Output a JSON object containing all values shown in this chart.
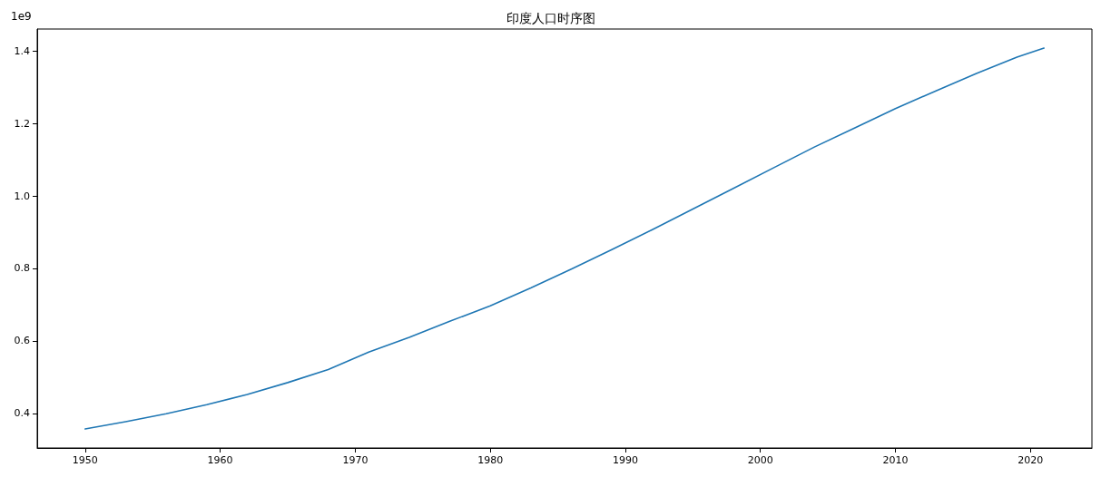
{
  "chart_data": {
    "type": "line",
    "title": "印度人口时序图",
    "annotations": [
      "1e9"
    ],
    "x": [
      1950,
      1953,
      1956,
      1959,
      1962,
      1965,
      1968,
      1971,
      1974,
      1977,
      1980,
      1983,
      1986,
      1989,
      1992,
      1995,
      1998,
      2001,
      2004,
      2007,
      2010,
      2013,
      2016,
      2019,
      2021
    ],
    "series": [
      {
        "color": "#1f77b4",
        "values": [
          0.357,
          0.377,
          0.399,
          0.424,
          0.452,
          0.485,
          0.521,
          0.569,
          0.61,
          0.654,
          0.697,
          0.746,
          0.798,
          0.852,
          0.907,
          0.964,
          1.021,
          1.078,
          1.135,
          1.188,
          1.241,
          1.29,
          1.338,
          1.383,
          1.408
        ]
      }
    ],
    "xlim": [
      1946.45,
      2024.55
    ],
    "xticks": [
      1950,
      1960,
      1970,
      1980,
      1990,
      2000,
      2010,
      2020
    ],
    "ylim": [
      0.3045,
      1.4606
    ],
    "yticks": [
      0.4,
      0.6,
      0.8,
      {
        "value": 1,
        "label": "1.0"
      },
      1.2,
      1.4
    ],
    "grid": false,
    "marker": "none",
    "line_style": "solid"
  }
}
